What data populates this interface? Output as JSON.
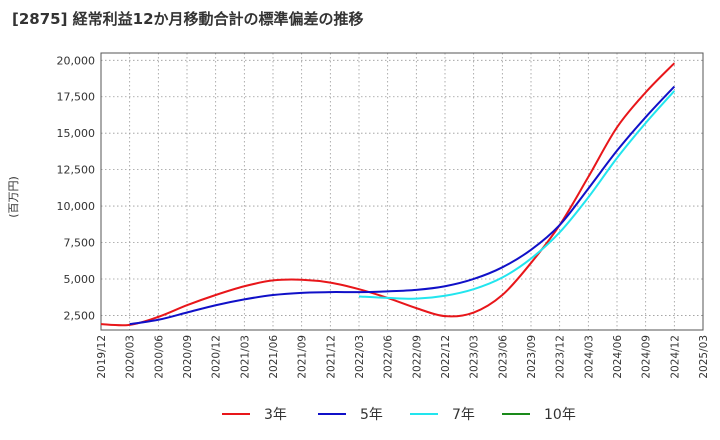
{
  "chart_data": {
    "type": "line",
    "title": "[2875]  経常利益12か月移動合計の標準偏差の推移",
    "ylabel": "(百万円)",
    "xlabel": "",
    "ylim": [
      1500,
      20500
    ],
    "yticks": [
      2500,
      5000,
      7500,
      10000,
      12500,
      15000,
      17500,
      20000
    ],
    "ytick_labels": [
      "2,500",
      "5,000",
      "7,500",
      "10,000",
      "12,500",
      "15,000",
      "17,500",
      "20,000"
    ],
    "xticks": [
      "2019/12",
      "2020/03",
      "2020/06",
      "2020/09",
      "2020/12",
      "2021/03",
      "2021/06",
      "2021/09",
      "2021/12",
      "2022/03",
      "2022/06",
      "2022/09",
      "2022/12",
      "2023/03",
      "2023/06",
      "2023/09",
      "2023/12",
      "2024/03",
      "2024/06",
      "2024/09",
      "2024/12",
      "2025/03"
    ],
    "grid": true,
    "legend_position": "bottom",
    "series": [
      {
        "name": "3年",
        "color": "#e8161a",
        "points": [
          [
            "2019/12",
            1900
          ],
          [
            "2020/03",
            1850
          ],
          [
            "2020/06",
            2400
          ],
          [
            "2020/09",
            3200
          ],
          [
            "2020/12",
            3900
          ],
          [
            "2021/03",
            4500
          ],
          [
            "2021/06",
            4900
          ],
          [
            "2021/09",
            4950
          ],
          [
            "2021/12",
            4750
          ],
          [
            "2022/03",
            4300
          ],
          [
            "2022/06",
            3700
          ],
          [
            "2022/09",
            3000
          ],
          [
            "2022/12",
            2450
          ],
          [
            "2023/03",
            2700
          ],
          [
            "2023/06",
            3900
          ],
          [
            "2023/09",
            6100
          ],
          [
            "2023/12",
            8700
          ],
          [
            "2024/03",
            12000
          ],
          [
            "2024/06",
            15400
          ],
          [
            "2024/09",
            17800
          ],
          [
            "2024/12",
            19800
          ]
        ]
      },
      {
        "name": "5年",
        "color": "#1010c8",
        "points": [
          [
            "2020/03",
            1900
          ],
          [
            "2020/06",
            2200
          ],
          [
            "2020/09",
            2700
          ],
          [
            "2020/12",
            3200
          ],
          [
            "2021/03",
            3600
          ],
          [
            "2021/06",
            3900
          ],
          [
            "2021/09",
            4050
          ],
          [
            "2021/12",
            4100
          ],
          [
            "2022/03",
            4100
          ],
          [
            "2022/06",
            4150
          ],
          [
            "2022/09",
            4250
          ],
          [
            "2022/12",
            4500
          ],
          [
            "2023/03",
            5000
          ],
          [
            "2023/06",
            5800
          ],
          [
            "2023/09",
            7000
          ],
          [
            "2023/12",
            8700
          ],
          [
            "2024/03",
            11200
          ],
          [
            "2024/06",
            13800
          ],
          [
            "2024/09",
            16100
          ],
          [
            "2024/12",
            18200
          ]
        ]
      },
      {
        "name": "7年",
        "color": "#22e5ee",
        "points": [
          [
            "2022/03",
            3800
          ],
          [
            "2022/06",
            3700
          ],
          [
            "2022/09",
            3650
          ],
          [
            "2022/12",
            3850
          ],
          [
            "2023/03",
            4300
          ],
          [
            "2023/06",
            5100
          ],
          [
            "2023/09",
            6400
          ],
          [
            "2023/12",
            8200
          ],
          [
            "2024/03",
            10600
          ],
          [
            "2024/06",
            13300
          ],
          [
            "2024/09",
            15700
          ],
          [
            "2024/12",
            17900
          ]
        ]
      },
      {
        "name": "10年",
        "color": "#1a8a1a",
        "points": []
      }
    ]
  }
}
